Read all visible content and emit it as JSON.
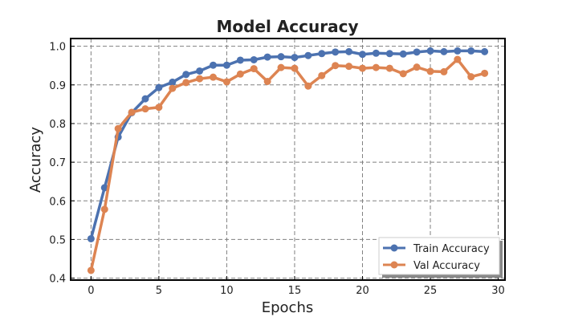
{
  "chart_data": {
    "type": "line",
    "title": "Model Accuracy",
    "xlabel": "Epochs",
    "ylabel": "Accuracy",
    "xlim": [
      -1.5,
      30.5
    ],
    "ylim": [
      0.395,
      1.02
    ],
    "xticks": [
      0,
      5,
      10,
      15,
      20,
      25,
      30
    ],
    "yticks": [
      0.4,
      0.5,
      0.6,
      0.7,
      0.8,
      0.9,
      1.0
    ],
    "xtick_labels": [
      "0",
      "5",
      "10",
      "15",
      "20",
      "25",
      "30"
    ],
    "ytick_labels": [
      "0.4",
      "0.5",
      "0.6",
      "0.7",
      "0.8",
      "0.9",
      "1.0"
    ],
    "grid": true,
    "legend_position": "bottom-right",
    "x": [
      0,
      1,
      2,
      3,
      4,
      5,
      6,
      7,
      8,
      9,
      10,
      11,
      12,
      13,
      14,
      15,
      16,
      17,
      18,
      19,
      20,
      21,
      22,
      23,
      24,
      25,
      26,
      27,
      28,
      29
    ],
    "series": [
      {
        "name": "Train Accuracy",
        "color": "#4C72B0",
        "values": [
          0.502,
          0.634,
          0.765,
          0.828,
          0.864,
          0.893,
          0.907,
          0.927,
          0.936,
          0.951,
          0.951,
          0.964,
          0.965,
          0.972,
          0.973,
          0.971,
          0.976,
          0.981,
          0.985,
          0.986,
          0.979,
          0.982,
          0.981,
          0.98,
          0.985,
          0.988,
          0.986,
          0.988,
          0.988,
          0.986
        ]
      },
      {
        "name": "Val Accuracy",
        "color": "#DD8452",
        "values": [
          0.42,
          0.578,
          0.787,
          0.829,
          0.838,
          0.842,
          0.891,
          0.906,
          0.916,
          0.92,
          0.908,
          0.928,
          0.942,
          0.909,
          0.945,
          0.943,
          0.897,
          0.924,
          0.95,
          0.948,
          0.943,
          0.945,
          0.943,
          0.929,
          0.946,
          0.935,
          0.934,
          0.966,
          0.921,
          0.93
        ]
      }
    ]
  }
}
